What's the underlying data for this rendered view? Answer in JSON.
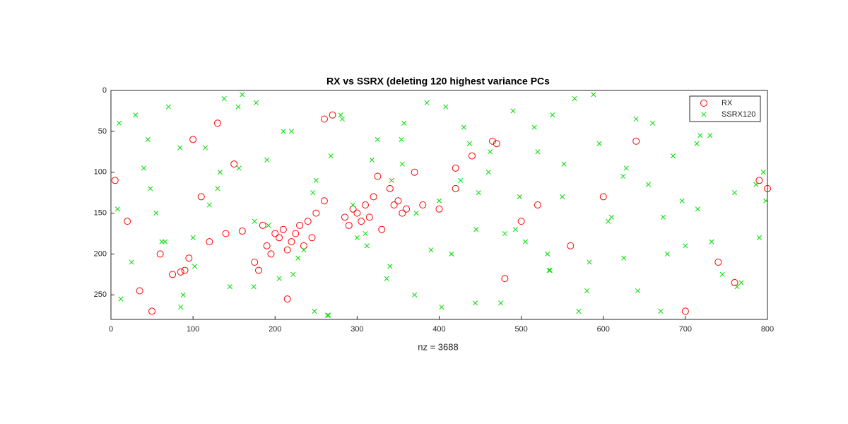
{
  "chart_data": {
    "type": "scatter",
    "title": "RX vs SSRX (deleting 120 highest variance PCs",
    "x_label": "nz = 3688",
    "xlim": [
      0,
      800
    ],
    "ylim": [
      0,
      280
    ],
    "y_reversed": true,
    "xticks": [
      0,
      100,
      200,
      300,
      400,
      500,
      600,
      700,
      800
    ],
    "yticks": [
      0,
      50,
      100,
      150,
      200,
      250
    ],
    "legend_position": "upper-right",
    "series": [
      {
        "name": "RX",
        "color": "#ff0000",
        "marker": "circle",
        "x": [
          5,
          20,
          35,
          60,
          75,
          90,
          85,
          95,
          100,
          120,
          140,
          160,
          175,
          185,
          190,
          195,
          200,
          205,
          210,
          215,
          220,
          225,
          230,
          235,
          240,
          245,
          250,
          260,
          270,
          285,
          290,
          295,
          300,
          305,
          310,
          315,
          320,
          325,
          330,
          340,
          345,
          350,
          355,
          360,
          370,
          380,
          400,
          420,
          440,
          465,
          470,
          480,
          500,
          520,
          560,
          600,
          640,
          700,
          740,
          760,
          790,
          800,
          150,
          130,
          215,
          260,
          50,
          110,
          180,
          420
        ],
        "y": [
          110,
          160,
          245,
          200,
          225,
          220,
          222,
          205,
          60,
          185,
          175,
          172,
          210,
          165,
          190,
          200,
          175,
          180,
          170,
          195,
          185,
          175,
          165,
          190,
          160,
          180,
          150,
          135,
          30,
          155,
          165,
          145,
          150,
          160,
          140,
          155,
          130,
          105,
          170,
          120,
          140,
          135,
          150,
          145,
          100,
          140,
          145,
          120,
          80,
          62,
          65,
          230,
          160,
          140,
          190,
          130,
          62,
          270,
          210,
          235,
          110,
          120,
          90,
          40,
          255,
          35,
          270,
          130,
          220,
          95
        ]
      },
      {
        "name": "SSRX120",
        "color": "#00dd00",
        "marker": "x",
        "x": [
          10,
          25,
          40,
          55,
          70,
          85,
          100,
          115,
          130,
          145,
          160,
          175,
          190,
          205,
          220,
          235,
          250,
          265,
          280,
          295,
          310,
          325,
          340,
          355,
          370,
          385,
          400,
          415,
          430,
          445,
          460,
          475,
          490,
          505,
          520,
          535,
          550,
          565,
          580,
          595,
          610,
          625,
          640,
          655,
          670,
          685,
          700,
          715,
          730,
          745,
          760,
          775,
          790,
          795,
          12,
          30,
          48,
          66,
          84,
          102,
          120,
          138,
          156,
          174,
          192,
          210,
          228,
          246,
          264,
          282,
          300,
          318,
          336,
          354,
          372,
          390,
          408,
          426,
          444,
          462,
          480,
          498,
          516,
          534,
          552,
          570,
          588,
          606,
          624,
          642,
          660,
          678,
          696,
          714,
          732,
          750,
          768,
          786,
          8,
          45,
          88,
          133,
          177,
          222,
          268,
          312,
          357,
          403,
          448,
          493,
          538,
          583,
          628,
          673,
          718,
          763,
          798,
          62,
          155,
          248,
          342,
          437,
          532
        ],
        "y": [
          40,
          210,
          95,
          150,
          20,
          265,
          180,
          70,
          120,
          240,
          5,
          160,
          85,
          230,
          50,
          195,
          110,
          275,
          30,
          140,
          175,
          60,
          215,
          90,
          250,
          15,
          135,
          200,
          45,
          170,
          100,
          260,
          25,
          185,
          75,
          220,
          130,
          10,
          245,
          65,
          155,
          205,
          35,
          115,
          270,
          80,
          190,
          145,
          55,
          225,
          125,
          15,
          180,
          100,
          255,
          30,
          120,
          185,
          70,
          215,
          140,
          10,
          95,
          240,
          165,
          50,
          205,
          125,
          275,
          35,
          180,
          85,
          230,
          60,
          150,
          195,
          20,
          110,
          260,
          75,
          175,
          130,
          45,
          220,
          90,
          270,
          5,
          160,
          105,
          245,
          40,
          200,
          135,
          65,
          185,
          25,
          235,
          115,
          145,
          60,
          250,
          100,
          15,
          225,
          80,
          190,
          40,
          265,
          125,
          170,
          30,
          210,
          95,
          155,
          55,
          240,
          135,
          185,
          20,
          270,
          110,
          65,
          200
        ]
      }
    ]
  }
}
